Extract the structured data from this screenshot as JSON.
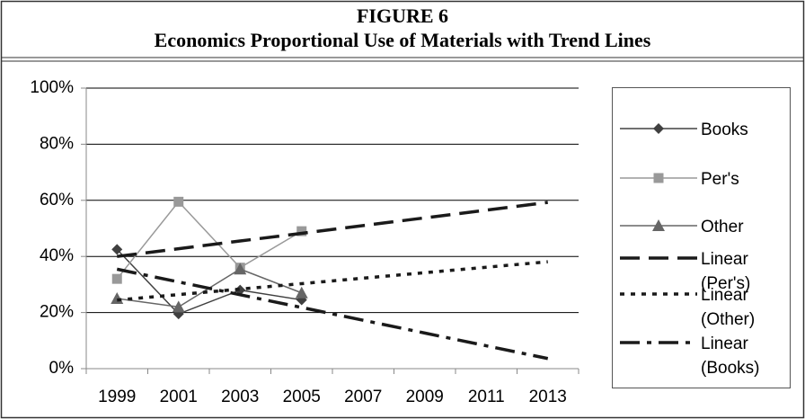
{
  "chart_data": {
    "type": "line",
    "figure_label": "FIGURE 6",
    "title": "Economics Proportional Use of Materials with Trend Lines",
    "categories": [
      "1999",
      "2001",
      "2003",
      "2005",
      "2007",
      "2009",
      "2011",
      "2013"
    ],
    "ylim": [
      0,
      100
    ],
    "yticks": [
      {
        "value": 0,
        "label": "0%"
      },
      {
        "value": 20,
        "label": "20%"
      },
      {
        "value": 40,
        "label": "40%"
      },
      {
        "value": 60,
        "label": "60%"
      },
      {
        "value": 80,
        "label": "80%"
      },
      {
        "value": 100,
        "label": "100%"
      }
    ],
    "grid": true,
    "legend": "right",
    "series": [
      {
        "name": "Books",
        "color": "#404040",
        "marker": "diamond",
        "dash": "solid",
        "values": [
          42.5,
          19.5,
          28,
          24.5,
          null,
          null,
          null,
          null
        ]
      },
      {
        "name": "Per's",
        "color": "#999999",
        "marker": "square",
        "dash": "solid",
        "values": [
          32,
          59.5,
          36,
          49,
          null,
          null,
          null,
          null
        ]
      },
      {
        "name": "Other",
        "color": "#666666",
        "marker": "triangle",
        "dash": "solid",
        "values": [
          25,
          22,
          35.5,
          27,
          null,
          null,
          null,
          null
        ]
      },
      {
        "name": "Linear (Per's)",
        "color": "#1a1a1a",
        "marker": "none",
        "dash": "longdash",
        "values": [
          40,
          42.75,
          45.5,
          48.25,
          51,
          53.75,
          56.5,
          59.25
        ]
      },
      {
        "name": "Linear (Other)",
        "color": "#1a1a1a",
        "marker": "none",
        "dash": "dot",
        "values": [
          24.45,
          26.4,
          28.35,
          30.3,
          32.25,
          34.2,
          36.15,
          38.1
        ]
      },
      {
        "name": "Linear (Books)",
        "color": "#1a1a1a",
        "marker": "none",
        "dash": "dashdot",
        "values": [
          35.45,
          30.9,
          26.35,
          21.8,
          17.25,
          12.7,
          8.15,
          3.6
        ]
      }
    ]
  }
}
